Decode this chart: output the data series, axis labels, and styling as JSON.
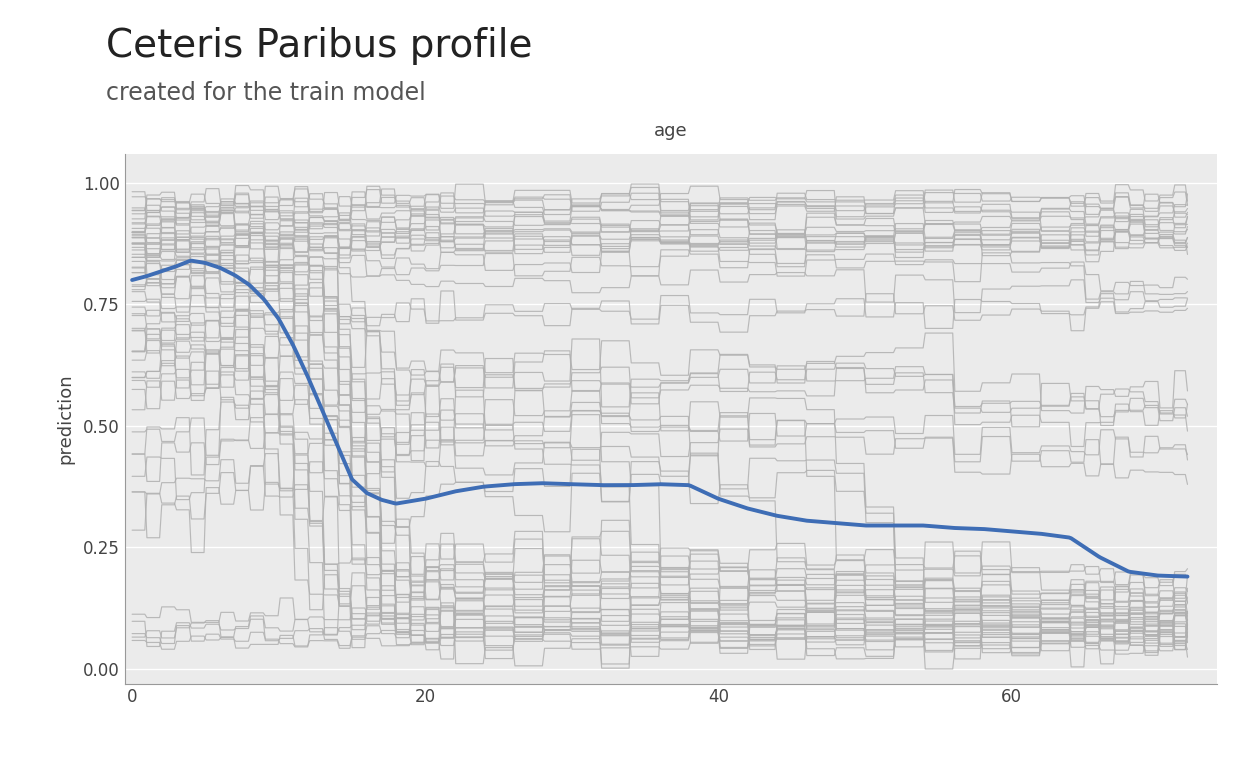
{
  "title": "Ceteris Paribus profile",
  "subtitle": "created for the train model",
  "xlabel": "age",
  "ylabel": "prediction",
  "xlim": [
    -0.5,
    74
  ],
  "ylim": [
    -0.03,
    1.06
  ],
  "xticks": [
    0,
    20,
    40,
    60
  ],
  "yticks": [
    0.0,
    0.25,
    0.5,
    0.75,
    1.0
  ],
  "bg_color": "#EBEBEB",
  "grid_color": "#FFFFFF",
  "cp_line_color": "#B0B0B0",
  "pdp_line_color": "#3E6DB5",
  "pdp_linewidth": 2.8,
  "cp_linewidth": 0.85,
  "cp_alpha": 0.85,
  "title_fontsize": 28,
  "subtitle_fontsize": 17,
  "label_fontsize": 13,
  "tick_fontsize": 12,
  "axis_text_color": "#444444",
  "title_color": "#222222",
  "subtitle_color": "#555555"
}
